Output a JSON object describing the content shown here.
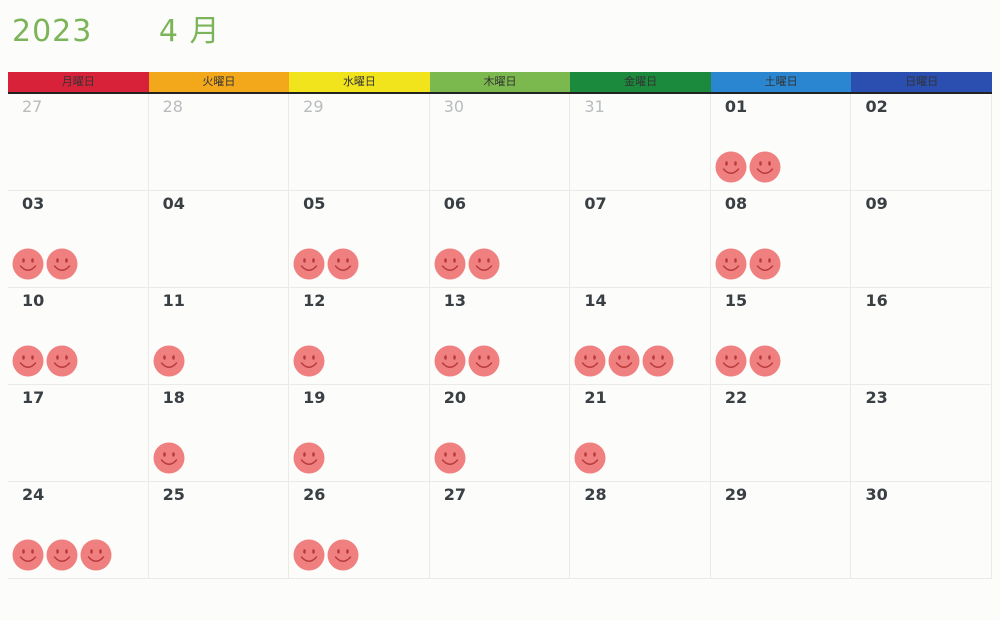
{
  "header": {
    "year": "2023",
    "month": "4 月"
  },
  "weekdays": [
    {
      "label": "月曜日",
      "color": "#d8223a"
    },
    {
      "label": "火曜日",
      "color": "#f3a81c"
    },
    {
      "label": "水曜日",
      "color": "#f2e41c"
    },
    {
      "label": "木曜日",
      "color": "#7bb84e"
    },
    {
      "label": "金曜日",
      "color": "#1b8a3c"
    },
    {
      "label": "土曜日",
      "color": "#2a86d0"
    },
    {
      "label": "日曜日",
      "color": "#2a4fb0"
    }
  ],
  "weeks": [
    [
      {
        "day": "27",
        "current": false,
        "stamps": 0
      },
      {
        "day": "28",
        "current": false,
        "stamps": 0
      },
      {
        "day": "29",
        "current": false,
        "stamps": 0
      },
      {
        "day": "30",
        "current": false,
        "stamps": 0
      },
      {
        "day": "31",
        "current": false,
        "stamps": 0
      },
      {
        "day": "01",
        "current": true,
        "stamps": 2
      },
      {
        "day": "02",
        "current": true,
        "stamps": 0
      }
    ],
    [
      {
        "day": "03",
        "current": true,
        "stamps": 2
      },
      {
        "day": "04",
        "current": true,
        "stamps": 0
      },
      {
        "day": "05",
        "current": true,
        "stamps": 2
      },
      {
        "day": "06",
        "current": true,
        "stamps": 2
      },
      {
        "day": "07",
        "current": true,
        "stamps": 0
      },
      {
        "day": "08",
        "current": true,
        "stamps": 2
      },
      {
        "day": "09",
        "current": true,
        "stamps": 0
      }
    ],
    [
      {
        "day": "10",
        "current": true,
        "stamps": 2
      },
      {
        "day": "11",
        "current": true,
        "stamps": 1
      },
      {
        "day": "12",
        "current": true,
        "stamps": 1
      },
      {
        "day": "13",
        "current": true,
        "stamps": 2
      },
      {
        "day": "14",
        "current": true,
        "stamps": 3
      },
      {
        "day": "15",
        "current": true,
        "stamps": 2
      },
      {
        "day": "16",
        "current": true,
        "stamps": 0
      }
    ],
    [
      {
        "day": "17",
        "current": true,
        "stamps": 0
      },
      {
        "day": "18",
        "current": true,
        "stamps": 1
      },
      {
        "day": "19",
        "current": true,
        "stamps": 1
      },
      {
        "day": "20",
        "current": true,
        "stamps": 1
      },
      {
        "day": "21",
        "current": true,
        "stamps": 1
      },
      {
        "day": "22",
        "current": true,
        "stamps": 0
      },
      {
        "day": "23",
        "current": true,
        "stamps": 0
      }
    ],
    [
      {
        "day": "24",
        "current": true,
        "stamps": 3
      },
      {
        "day": "25",
        "current": true,
        "stamps": 0
      },
      {
        "day": "26",
        "current": true,
        "stamps": 2
      },
      {
        "day": "27",
        "current": true,
        "stamps": 0
      },
      {
        "day": "28",
        "current": true,
        "stamps": 0
      },
      {
        "day": "29",
        "current": true,
        "stamps": 0
      },
      {
        "day": "30",
        "current": true,
        "stamps": 0
      }
    ]
  ],
  "stamp_icon": "smiley-face-icon",
  "stamp_color": "#f07f7f"
}
